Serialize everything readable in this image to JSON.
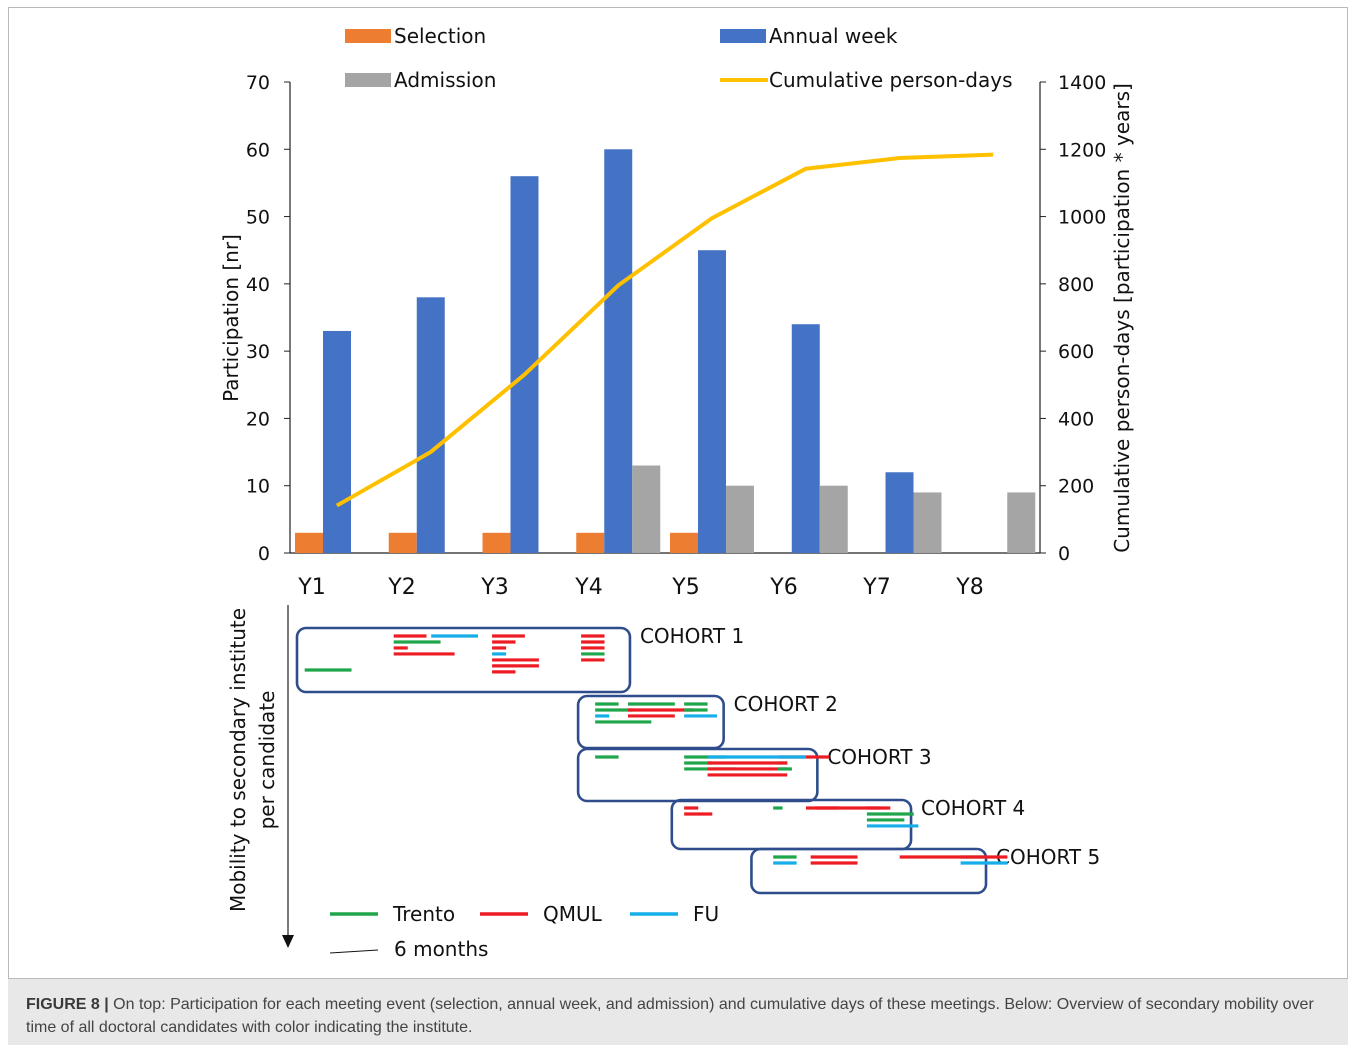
{
  "chart_data": [
    {
      "type": "bar",
      "categories": [
        "Y1",
        "Y2",
        "Y3",
        "Y4",
        "Y5",
        "Y6",
        "Y7",
        "Y8"
      ],
      "series": [
        {
          "name": "Selection",
          "type": "bar",
          "axis": "left",
          "color": "#ed7d31",
          "values": [
            3,
            3,
            3,
            3,
            3,
            null,
            null,
            null
          ]
        },
        {
          "name": "Annual week",
          "type": "bar",
          "axis": "left",
          "color": "#4472c4",
          "values": [
            33,
            38,
            56,
            60,
            45,
            34,
            12,
            null
          ]
        },
        {
          "name": "Admission",
          "type": "bar",
          "axis": "left",
          "color": "#a5a5a5",
          "values": [
            null,
            null,
            null,
            13,
            10,
            10,
            9,
            9
          ]
        },
        {
          "name": "Cumulative person-days",
          "type": "line",
          "axis": "right",
          "color": "#ffc000",
          "values": [
            141,
            300,
            530,
            795,
            995,
            1142,
            1174,
            1184
          ]
        }
      ],
      "ylabel": "Participation [nr]",
      "ylim": [
        0,
        70
      ],
      "yticks": [
        "0",
        "10",
        "20",
        "30",
        "40",
        "50",
        "60",
        "70"
      ],
      "y2label": "Cumulative person-days [participation * years]",
      "y2lim": [
        0,
        1400
      ],
      "y2ticks": [
        "0",
        "200",
        "400",
        "600",
        "800",
        "1000",
        "1200",
        "1400"
      ],
      "legend_position": "top",
      "grid": false
    },
    {
      "type": "timeline",
      "ylabel_lines": [
        "Mobility to secondary institute",
        "per candidate"
      ],
      "x_unit_label": "6 months",
      "institutes": [
        {
          "name": "Trento",
          "color": "#1fa64a"
        },
        {
          "name": "QMUL",
          "color": "#ed1c24"
        },
        {
          "name": "FU",
          "color": "#16aee8"
        }
      ],
      "cohorts": [
        {
          "label": "COHORT 1",
          "start": 1.0,
          "end": 4.5,
          "segments": [
            [
              "QMUL",
              2.0,
              2.35
            ],
            [
              "Trento",
              2.0,
              2.5
            ],
            [
              "QMUL",
              2.0,
              2.15
            ],
            [
              "QMUL",
              2.0,
              2.65
            ],
            [
              "FU",
              2.4,
              2.9
            ],
            [
              "Trento",
              1.05,
              1.55
            ],
            [
              "QMUL",
              3.05,
              3.4
            ],
            [
              "QMUL",
              3.05,
              3.3
            ],
            [
              "QMUL",
              3.05,
              3.2
            ],
            [
              "FU",
              3.05,
              3.2
            ],
            [
              "QMUL",
              3.05,
              3.55
            ],
            [
              "QMUL",
              3.05,
              3.55
            ],
            [
              "QMUL",
              3.05,
              3.3
            ],
            [
              "QMUL",
              4.0,
              4.25
            ],
            [
              "QMUL",
              4.0,
              4.25
            ],
            [
              "QMUL",
              4.0,
              4.25
            ],
            [
              "Trento",
              4.0,
              4.25
            ],
            [
              "QMUL",
              4.0,
              4.25
            ]
          ]
        },
        {
          "label": "COHORT 2",
          "start": 4.0,
          "end": 5.5,
          "segments": [
            [
              "Trento",
              4.15,
              4.4
            ],
            [
              "Trento",
              4.15,
              4.55
            ],
            [
              "FU",
              4.15,
              4.3
            ],
            [
              "Trento",
              4.15,
              4.75
            ],
            [
              "Trento",
              4.5,
              5.0
            ],
            [
              "QMUL",
              4.5,
              5.2
            ],
            [
              "QMUL",
              4.5,
              5.0
            ],
            [
              "Trento",
              5.1,
              5.35
            ],
            [
              "Trento",
              5.1,
              5.35
            ],
            [
              "FU",
              5.1,
              5.45
            ]
          ]
        },
        {
          "label": "COHORT 3",
          "start": 4.0,
          "end": 6.5,
          "segments": [
            [
              "Trento",
              5.1,
              5.55
            ],
            [
              "QMUL",
              6.1,
              6.65
            ],
            [
              "Trento",
              6.1,
              6.2
            ],
            [
              "FU",
              5.35,
              6.4
            ],
            [
              "Trento",
              5.1,
              5.4
            ],
            [
              "QMUL",
              5.35,
              6.2
            ],
            [
              "Trento",
              5.1,
              5.65
            ],
            [
              "QMUL",
              5.35,
              6.2
            ],
            [
              "QMUL",
              5.35,
              6.2
            ],
            [
              "Trento",
              4.15,
              4.4
            ],
            [
              "Trento",
              6.1,
              6.25
            ]
          ]
        },
        {
          "label": "COHORT 4",
          "start": 5.0,
          "end": 7.5,
          "segments": [
            [
              "QMUL",
              5.1,
              5.25
            ],
            [
              "QMUL",
              5.1,
              5.4
            ],
            [
              "QMUL",
              6.5,
              6.75
            ],
            [
              "QMUL",
              7.05,
              7.3
            ],
            [
              "Trento",
              7.05,
              7.55
            ],
            [
              "Trento",
              7.05,
              7.45
            ],
            [
              "Trento",
              6.05,
              6.15
            ],
            [
              "FU",
              7.05,
              7.6
            ],
            [
              "QMUL",
              6.4,
              7.2
            ]
          ]
        },
        {
          "label": "COHORT 5",
          "start": 5.85,
          "end": 8.3,
          "segments": [
            [
              "Trento",
              6.05,
              6.3
            ],
            [
              "QMUL",
              6.45,
              6.95
            ],
            [
              "QMUL",
              6.45,
              6.95
            ],
            [
              "Trento",
              8.05,
              8.3
            ],
            [
              "FU",
              6.05,
              6.3
            ],
            [
              "FU",
              8.05,
              8.55
            ],
            [
              "QMUL",
              7.4,
              8.55
            ]
          ]
        }
      ]
    }
  ],
  "figure": {
    "caption_label": "FIGURE 8 |",
    "caption_text": " On top: Participation for each meeting event (selection, annual week, and admission) and cumulative days of these meetings. Below: Overview of secondary mobility over time of all doctoral candidates with color indicating the institute."
  }
}
